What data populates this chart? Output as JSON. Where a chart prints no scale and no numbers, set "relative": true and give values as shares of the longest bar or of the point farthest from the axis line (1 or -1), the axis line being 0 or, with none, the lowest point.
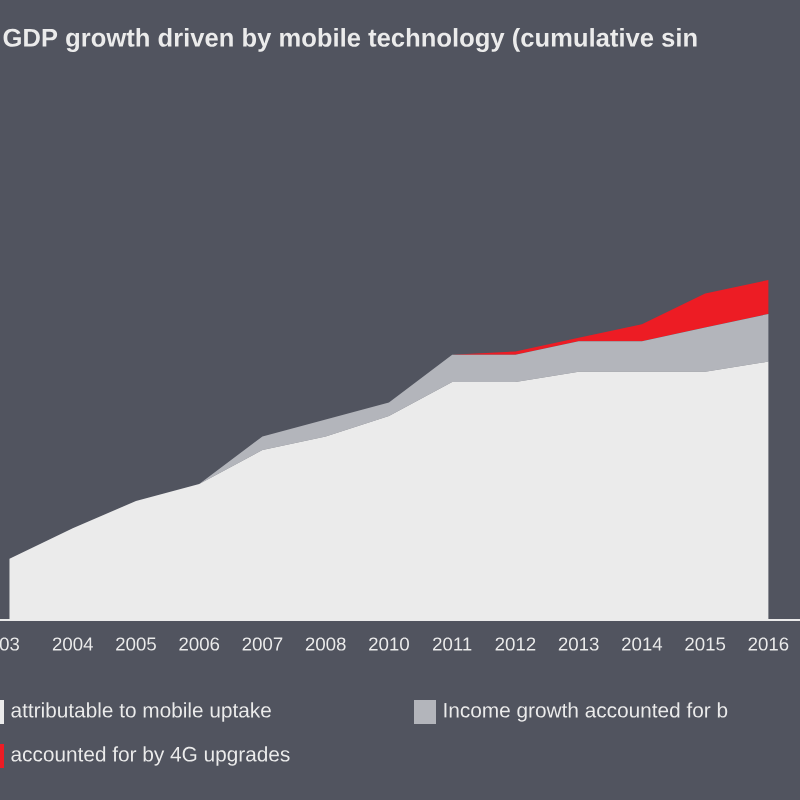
{
  "chart_data": {
    "type": "area",
    "title": "GDP growth driven by mobile technology (cumulative sin",
    "stacked": true,
    "relative": true,
    "legend": "bottom",
    "categories": [
      "03",
      "2004",
      "2005",
      "2006",
      "2007",
      "2008",
      "2010",
      "2011",
      "2012",
      "2013",
      "2014",
      "2015",
      "2016"
    ],
    "series": [
      {
        "name": "attributable to mobile uptake",
        "color": "#ebebeb",
        "values": [
          0.18,
          0.27,
          0.35,
          0.4,
          0.5,
          0.54,
          0.6,
          0.7,
          0.7,
          0.73,
          0.73,
          0.73,
          0.76
        ]
      },
      {
        "name": "Income growth accounted for b",
        "color": "#b3b5bb",
        "values": [
          0,
          0,
          0,
          0,
          0.04,
          0.05,
          0.04,
          0.08,
          0.08,
          0.09,
          0.09,
          0.13,
          0.14
        ]
      },
      {
        "name": "accounted for by 4G upgrades",
        "color": "#ed1c24",
        "values": [
          0,
          0,
          0,
          0,
          0,
          0,
          0,
          0,
          0.01,
          0.01,
          0.05,
          0.1,
          0.1
        ]
      }
    ]
  }
}
